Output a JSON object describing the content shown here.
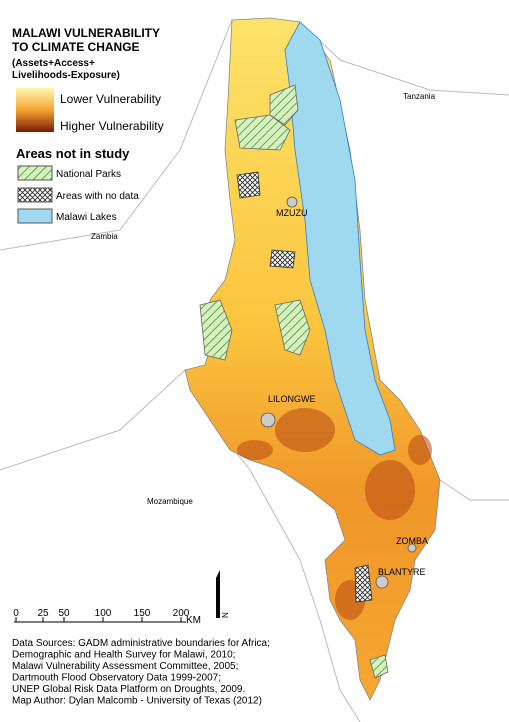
{
  "title": {
    "line1": "MALAWI VULNERABILITY",
    "line2": "TO CLIMATE CHANGE",
    "subtitle1": "(Assets+Access+",
    "subtitle2": "Livelihoods-Exposure)"
  },
  "legend": {
    "low": "Lower Vulnerability",
    "high": "Higher Vulnerability",
    "areas_title": "Areas not in study",
    "items": [
      "National Parks",
      "Areas with no data",
      "Malawi Lakes"
    ]
  },
  "countries": [
    "Tanzania",
    "Zambia",
    "Mozambique"
  ],
  "cities": [
    "MZUZU",
    "LILONGWE",
    "ZOMBA",
    "BLANTYRE"
  ],
  "scale_bar": {
    "ticks": [
      "0",
      "25",
      "50",
      "100",
      "150",
      "200"
    ],
    "unit": "KM"
  },
  "north_arrow": "N",
  "sources": [
    "Data Sources: GADM administrative boundaries for Africa;",
    "Demographic and Health Survey for Malawi, 2010;",
    "Malawi Vulnerability Assessment Committee, 2005;",
    "Dartmouth Flood Observatory Data 1999-2007;",
    "UNEP Global Risk Data Platform on Droughts, 2009.",
    "Map Author:  Dylan Malcomb - University of Texas (2012)"
  ]
}
